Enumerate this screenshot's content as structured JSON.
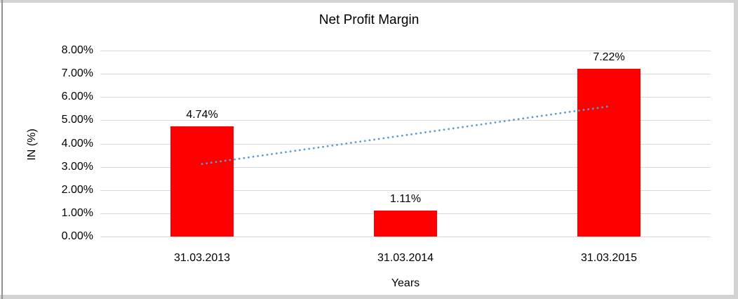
{
  "chart_data": {
    "type": "bar",
    "title": "Net Profit Margin",
    "xlabel": "Years",
    "ylabel": "IN (%)",
    "categories": [
      "31.03.2013",
      "31.03.2014",
      "31.03.2015"
    ],
    "values": [
      4.74,
      1.11,
      7.22
    ],
    "data_labels": [
      "4.74%",
      "1.11%",
      "7.22%"
    ],
    "ytick_labels": [
      "0.00%",
      "1.00%",
      "2.00%",
      "3.00%",
      "4.00%",
      "5.00%",
      "6.00%",
      "7.00%",
      "8.00%"
    ],
    "ylim": [
      0,
      8
    ],
    "ytick_step": 1,
    "grid": true,
    "legend": "none",
    "colors": {
      "bar": "#FF0000",
      "gridline": "#D9D9D9",
      "text": "#000000",
      "trendline": "#5B9BD5"
    },
    "trendline": {
      "type": "linear",
      "style": "dotted",
      "start_value": 3.12,
      "end_value": 5.6,
      "start_category_index": 0,
      "end_category_index": 2
    }
  }
}
